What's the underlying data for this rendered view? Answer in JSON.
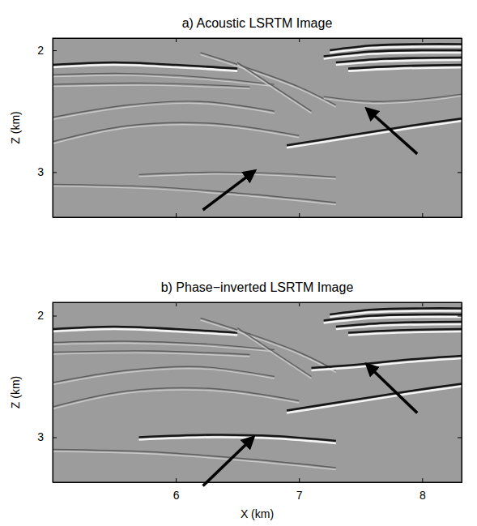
{
  "chart_data": [
    {
      "type": "image",
      "title": "a) Acoustic LSRTM Image",
      "ylabel": "Z (km)",
      "xlim": [
        5.0,
        8.32
      ],
      "ylim": [
        1.9,
        3.37
      ],
      "xticks": [
        6,
        7,
        8
      ],
      "yticks": [
        2,
        3
      ],
      "tick_labels": "y",
      "reflectors": [
        {
          "x": [
            7.25,
            7.6,
            8.0,
            8.32
          ],
          "z": [
            2.0,
            1.96,
            1.95,
            1.95
          ],
          "line_style": "strong"
        },
        {
          "x": [
            7.2,
            7.6,
            8.0,
            8.32
          ],
          "z": [
            2.05,
            2.01,
            2.0,
            2.0
          ],
          "line_style": "strong"
        },
        {
          "x": [
            7.3,
            7.7,
            8.32
          ],
          "z": [
            2.1,
            2.07,
            2.06
          ],
          "line_style": "strong"
        },
        {
          "x": [
            7.4,
            7.8,
            8.32
          ],
          "z": [
            2.15,
            2.13,
            2.12
          ],
          "line_style": "strong"
        },
        {
          "x": [
            5.0,
            5.5,
            6.0,
            6.5
          ],
          "z": [
            2.12,
            2.1,
            2.12,
            2.15
          ],
          "line_style": "strong"
        },
        {
          "x": [
            5.0,
            5.6,
            6.2,
            6.8
          ],
          "z": [
            2.2,
            2.19,
            2.22,
            2.28
          ],
          "line_style": "faint"
        },
        {
          "x": [
            5.0,
            5.8,
            6.6
          ],
          "z": [
            2.28,
            2.27,
            2.3
          ],
          "line_style": "faint"
        },
        {
          "x": [
            6.2,
            6.6,
            7.0,
            7.3
          ],
          "z": [
            2.02,
            2.15,
            2.3,
            2.45
          ],
          "line_style": "faint"
        },
        {
          "x": [
            6.5,
            6.8,
            7.1
          ],
          "z": [
            2.1,
            2.3,
            2.5
          ],
          "line_style": "faint"
        },
        {
          "x": [
            6.9,
            7.4,
            7.9,
            8.32
          ],
          "z": [
            2.78,
            2.7,
            2.62,
            2.56
          ],
          "line_style": "strong"
        },
        {
          "x": [
            7.2,
            7.6,
            8.0,
            8.32
          ],
          "z": [
            2.38,
            2.42,
            2.4,
            2.36
          ],
          "line_style": "faint"
        },
        {
          "x": [
            5.7,
            6.3,
            6.8,
            7.3
          ],
          "z": [
            3.02,
            3.0,
            3.01,
            3.04
          ],
          "line_style": "faint"
        },
        {
          "x": [
            5.0,
            5.6,
            6.2,
            6.8
          ],
          "z": [
            2.55,
            2.45,
            2.42,
            2.5
          ],
          "line_style": "faint"
        },
        {
          "x": [
            5.0,
            5.6,
            6.3,
            7.0
          ],
          "z": [
            2.75,
            2.62,
            2.6,
            2.7
          ],
          "line_style": "faint"
        },
        {
          "x": [
            5.0,
            5.8,
            6.6,
            7.3
          ],
          "z": [
            3.1,
            3.12,
            3.18,
            3.25
          ],
          "line_style": "faint"
        }
      ],
      "arrows": [
        {
          "x": [
            6.22,
            6.64
          ],
          "z": [
            3.31,
            2.99
          ]
        },
        {
          "x": [
            7.96,
            7.55
          ],
          "z": [
            2.85,
            2.48
          ]
        }
      ]
    },
    {
      "type": "image",
      "title": "b) Phase−inverted LSRTM Image",
      "ylabel": "Z (km)",
      "xlabel": "X (km)",
      "xlim": [
        5.0,
        8.32
      ],
      "ylim": [
        1.89,
        3.37
      ],
      "xticks": [
        6,
        7,
        8
      ],
      "yticks": [
        2,
        3
      ],
      "reflectors": [
        {
          "x": [
            7.25,
            7.6,
            8.0,
            8.32
          ],
          "z": [
            1.99,
            1.95,
            1.94,
            1.94
          ],
          "line_style": "strong"
        },
        {
          "x": [
            7.2,
            7.6,
            8.0,
            8.32
          ],
          "z": [
            2.04,
            2.0,
            1.99,
            1.99
          ],
          "line_style": "strong"
        },
        {
          "x": [
            7.3,
            7.7,
            8.32
          ],
          "z": [
            2.09,
            2.06,
            2.05
          ],
          "line_style": "strong"
        },
        {
          "x": [
            7.4,
            7.8,
            8.32
          ],
          "z": [
            2.14,
            2.12,
            2.11
          ],
          "line_style": "strong"
        },
        {
          "x": [
            5.0,
            5.5,
            6.0,
            6.5
          ],
          "z": [
            2.11,
            2.09,
            2.11,
            2.14
          ],
          "line_style": "strong"
        },
        {
          "x": [
            5.0,
            5.6,
            6.2,
            6.8
          ],
          "z": [
            2.22,
            2.21,
            2.23,
            2.28
          ],
          "line_style": "faint"
        },
        {
          "x": [
            5.0,
            5.8,
            6.6
          ],
          "z": [
            2.3,
            2.29,
            2.32
          ],
          "line_style": "faint"
        },
        {
          "x": [
            6.2,
            6.6,
            7.0,
            7.3
          ],
          "z": [
            2.02,
            2.15,
            2.3,
            2.45
          ],
          "line_style": "faint"
        },
        {
          "x": [
            6.5,
            6.8,
            7.1
          ],
          "z": [
            2.1,
            2.3,
            2.5
          ],
          "line_style": "faint"
        },
        {
          "x": [
            6.9,
            7.4,
            7.9,
            8.32
          ],
          "z": [
            2.78,
            2.7,
            2.62,
            2.56
          ],
          "line_style": "strong"
        },
        {
          "x": [
            7.1,
            7.5,
            7.9,
            8.32
          ],
          "z": [
            2.43,
            2.4,
            2.36,
            2.33
          ],
          "line_style": "strong"
        },
        {
          "x": [
            5.7,
            6.3,
            6.8,
            7.3
          ],
          "z": [
            3.0,
            2.98,
            2.99,
            3.03
          ],
          "line_style": "strong"
        },
        {
          "x": [
            5.0,
            5.6,
            6.2,
            6.8
          ],
          "z": [
            2.55,
            2.45,
            2.42,
            2.5
          ],
          "line_style": "faint"
        },
        {
          "x": [
            5.0,
            5.6,
            6.3,
            7.0
          ],
          "z": [
            2.75,
            2.62,
            2.6,
            2.7
          ],
          "line_style": "faint"
        },
        {
          "x": [
            5.0,
            5.8,
            6.6,
            7.3
          ],
          "z": [
            3.1,
            3.12,
            3.18,
            3.25
          ],
          "line_style": "faint"
        }
      ],
      "arrows": [
        {
          "x": [
            6.22,
            6.63
          ],
          "z": [
            3.4,
            3.0
          ]
        },
        {
          "x": [
            7.96,
            7.55
          ],
          "z": [
            2.8,
            2.4
          ]
        }
      ]
    }
  ]
}
